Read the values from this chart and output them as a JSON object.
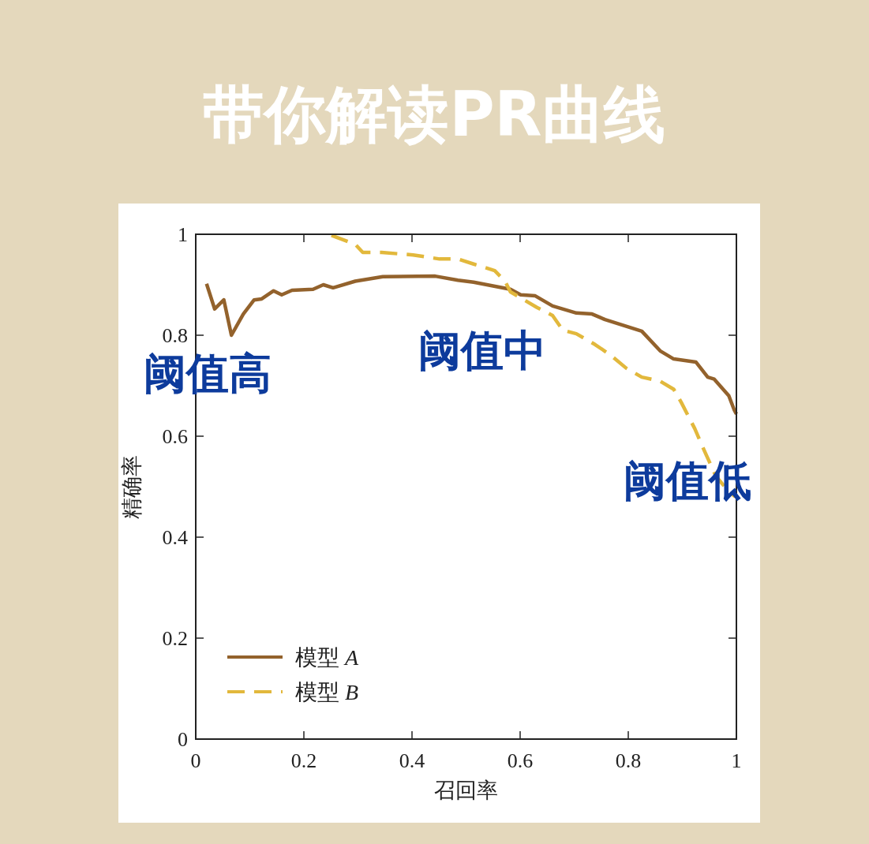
{
  "chart_data": {
    "type": "line",
    "title": "带你解读PR曲线",
    "xlabel": "召回率",
    "ylabel": "精确率",
    "xlim": [
      0,
      1
    ],
    "ylim": [
      0,
      1
    ],
    "xticks": [
      0,
      0.2,
      0.4,
      0.6,
      0.8,
      1
    ],
    "yticks": [
      0,
      0.2,
      0.4,
      0.6,
      0.8,
      1
    ],
    "grid": false,
    "legend": "bottom left",
    "annotations": [
      "阈值高",
      "阈值中",
      "阈值低"
    ],
    "series": [
      {
        "name": "模型 *A*",
        "color": "#93622c",
        "line_style": "solid",
        "x": [
          0.02,
          0.035,
          0.052,
          0.066,
          0.088,
          0.108,
          0.122,
          0.144,
          0.159,
          0.178,
          0.217,
          0.236,
          0.254,
          0.295,
          0.346,
          0.443,
          0.485,
          0.514,
          0.582,
          0.601,
          0.628,
          0.66,
          0.704,
          0.733,
          0.757,
          0.825,
          0.859,
          0.884,
          0.925,
          0.947,
          0.959,
          0.986,
          0.996,
          1.0
        ],
        "values": [
          0.902,
          0.852,
          0.87,
          0.8,
          0.842,
          0.87,
          0.872,
          0.888,
          0.88,
          0.889,
          0.891,
          0.9,
          0.894,
          0.907,
          0.916,
          0.917,
          0.909,
          0.905,
          0.891,
          0.88,
          0.878,
          0.858,
          0.844,
          0.842,
          0.831,
          0.808,
          0.769,
          0.753,
          0.747,
          0.717,
          0.713,
          0.68,
          0.652,
          0.644
        ]
      },
      {
        "name": "模型 *B*",
        "color": "#e2b83c",
        "line_style": "dashed",
        "x": [
          0.251,
          0.295,
          0.309,
          0.344,
          0.402,
          0.451,
          0.485,
          0.514,
          0.553,
          0.572,
          0.582,
          0.631,
          0.66,
          0.679,
          0.704,
          0.738,
          0.767,
          0.796,
          0.825,
          0.859,
          0.884,
          0.898,
          0.923,
          0.942,
          0.962,
          0.986,
          0.998
        ],
        "values": [
          0.998,
          0.98,
          0.964,
          0.964,
          0.959,
          0.951,
          0.951,
          0.941,
          0.928,
          0.907,
          0.886,
          0.855,
          0.839,
          0.81,
          0.803,
          0.782,
          0.761,
          0.735,
          0.717,
          0.709,
          0.693,
          0.667,
          0.615,
          0.568,
          0.521,
          0.49,
          0.48
        ]
      }
    ]
  }
}
